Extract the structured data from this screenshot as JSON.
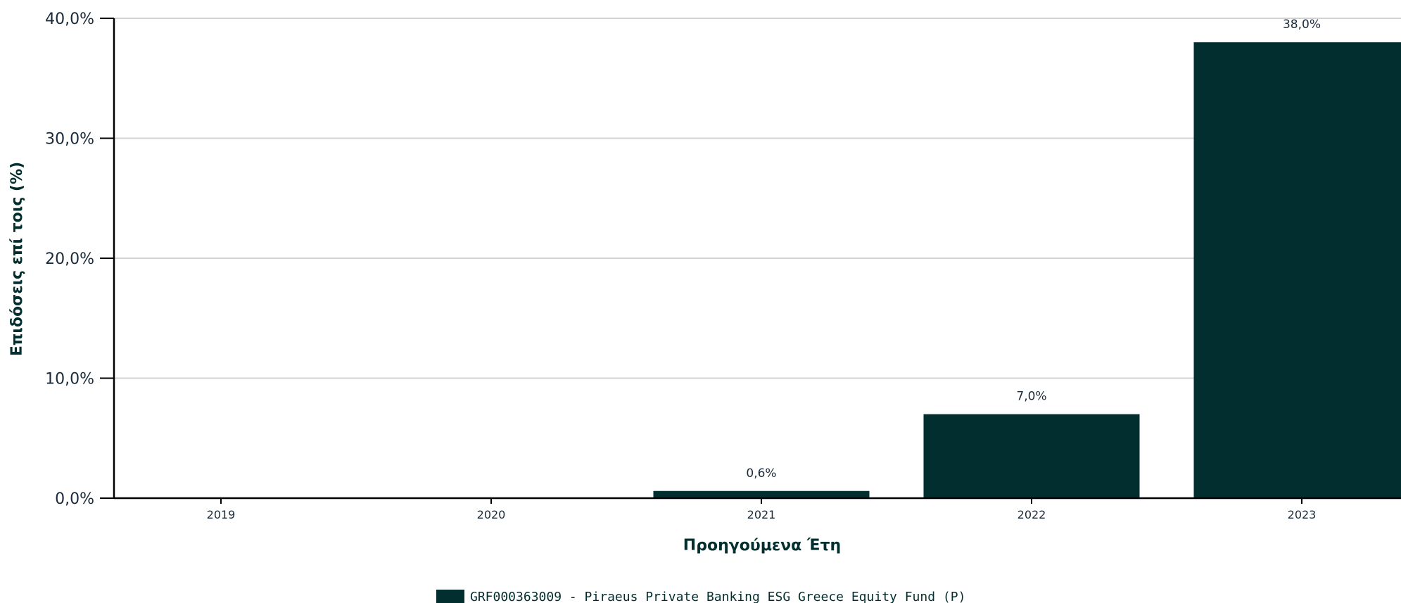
{
  "chart_data": {
    "type": "bar",
    "categories": [
      "2019",
      "2020",
      "2021",
      "2022",
      "2023"
    ],
    "series": [
      {
        "name": "GRF000363009 - Piraeus Private Banking ESG Greece Equity Fund (P)",
        "values": [
          null,
          null,
          0.6,
          7.0,
          38.0
        ],
        "data_labels": [
          "",
          "",
          "0,6%",
          "7,0%",
          "38,0%"
        ]
      }
    ],
    "ylim": [
      0,
      40
    ],
    "yticks": [
      0,
      10,
      20,
      30,
      40
    ],
    "ytick_labels": [
      "0,0%",
      "10,0%",
      "20,0%",
      "30,0%",
      "40,0%"
    ],
    "xlabel": "Προηγούμενα Έτη",
    "ylabel": "Επιδόσεις επί τοις (%)",
    "grid": true,
    "legend_position": "bottom",
    "colors": {
      "bar": "#032e30",
      "grid": "#d3d3d3",
      "axis": "#000000",
      "text": "#1b2a3a"
    }
  }
}
